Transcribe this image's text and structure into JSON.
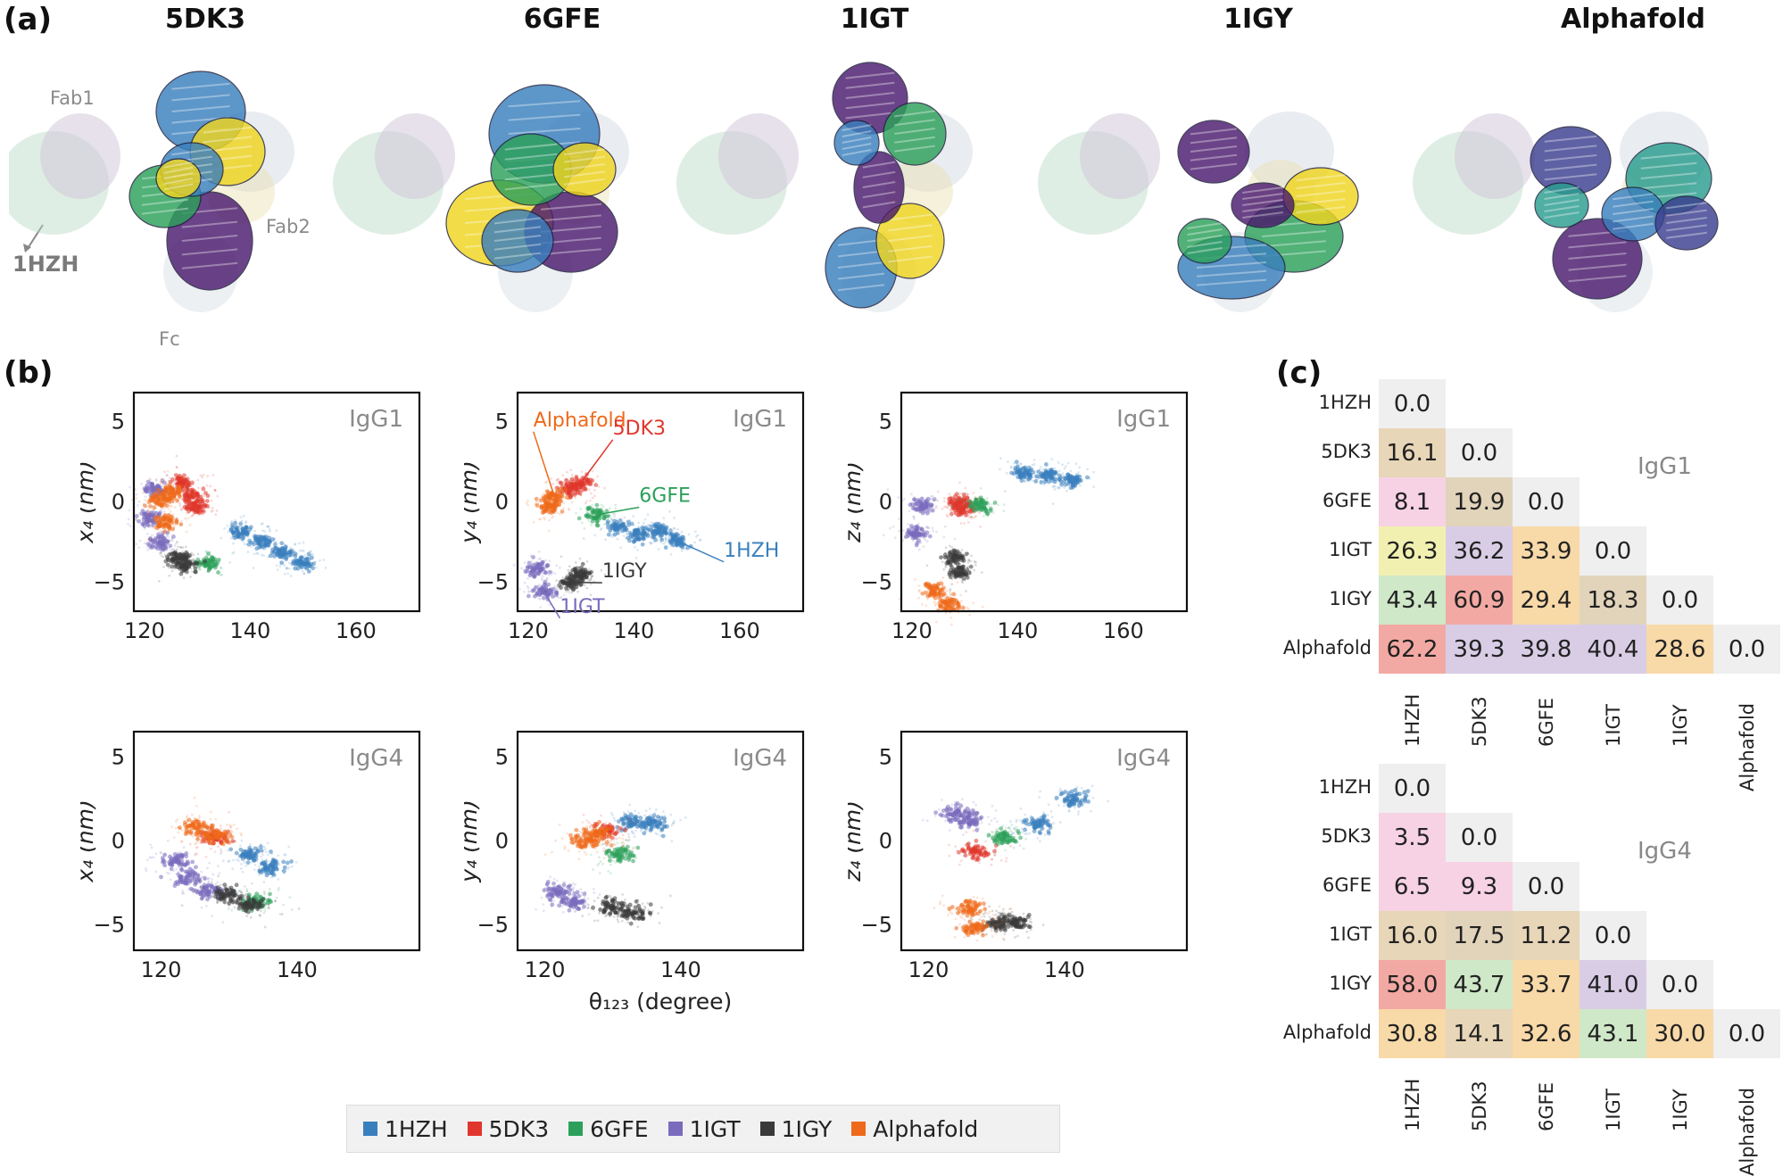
{
  "panel_labels": {
    "a": "(a)",
    "b": "(b)",
    "c": "(c)"
  },
  "panel_a": {
    "titles": [
      "5DK3",
      "6GFE",
      "1IGT",
      "1IGY",
      "Alphafold"
    ],
    "annotations": {
      "fab1": "Fab1",
      "fab2": "Fab2",
      "fc": "Fc",
      "reference": "1HZH"
    }
  },
  "colors": {
    "1HZH": "#3a7fbd",
    "5DK3": "#e0362c",
    "6GFE": "#2ca05a",
    "1IGT": "#7a6bbd",
    "1IGY": "#3a3a3a",
    "Alphafold": "#ee6a1a"
  },
  "legend": [
    "1HZH",
    "5DK3",
    "6GFE",
    "1IGT",
    "1IGY",
    "Alphafold"
  ],
  "chart_data": [
    {
      "type": "scatter",
      "subtype": "density",
      "title": "IgG1",
      "ylabel": "x₄ (nm)",
      "xlim": [
        118,
        172
      ],
      "ylim": [
        -6.8,
        6.8
      ],
      "xticks": [
        120,
        140,
        160
      ],
      "yticks": [
        -5,
        0,
        5
      ],
      "series": [
        {
          "name": "1HZH",
          "points": [
            [
              138,
              -1.8
            ],
            [
              142,
              -2.5
            ],
            [
              146,
              -3.2
            ],
            [
              150,
              -3.8
            ]
          ]
        },
        {
          "name": "5DK3",
          "points": [
            [
              127,
              1.2
            ],
            [
              129,
              0.3
            ],
            [
              130,
              -0.3
            ]
          ]
        },
        {
          "name": "6GFE",
          "points": [
            [
              132,
              -3.8
            ]
          ]
        },
        {
          "name": "1IGT",
          "points": [
            [
              122,
              0.8
            ],
            [
              121,
              -1.0
            ],
            [
              123,
              -2.5
            ]
          ]
        },
        {
          "name": "1IGY",
          "points": [
            [
              126,
              -3.5
            ],
            [
              128,
              -3.9
            ]
          ]
        },
        {
          "name": "Alphafold",
          "points": [
            [
              123,
              0.1
            ],
            [
              124,
              -1.3
            ],
            [
              125,
              0.6
            ]
          ]
        }
      ]
    },
    {
      "type": "scatter",
      "subtype": "density",
      "title": "IgG1",
      "ylabel": "y₄ (nm)",
      "xlim": [
        118,
        172
      ],
      "ylim": [
        -6.8,
        6.8
      ],
      "xticks": [
        120,
        140,
        160
      ],
      "yticks": [
        -5,
        0,
        5
      ],
      "annotations": [
        {
          "text": "Alphafold",
          "series": "Alphafold"
        },
        {
          "text": "5DK3",
          "series": "5DK3"
        },
        {
          "text": "6GFE",
          "series": "6GFE"
        },
        {
          "text": "1HZH",
          "series": "1HZH"
        },
        {
          "text": "1IGY",
          "series": "1IGY"
        },
        {
          "text": "1IGT",
          "series": "1IGT"
        }
      ],
      "series": [
        {
          "name": "1HZH",
          "points": [
            [
              137,
              -1.5
            ],
            [
              141,
              -2.0
            ],
            [
              145,
              -1.8
            ],
            [
              148,
              -2.4
            ]
          ]
        },
        {
          "name": "5DK3",
          "points": [
            [
              128,
              0.8
            ],
            [
              130,
              1.2
            ]
          ]
        },
        {
          "name": "6GFE",
          "points": [
            [
              133,
              -0.8
            ]
          ]
        },
        {
          "name": "1IGT",
          "points": [
            [
              122,
              -4.2
            ],
            [
              123,
              -5.6
            ]
          ]
        },
        {
          "name": "1IGY",
          "points": [
            [
              130,
              -4.5
            ],
            [
              128,
              -5.0
            ]
          ]
        },
        {
          "name": "Alphafold",
          "points": [
            [
              124,
              -0.3
            ],
            [
              125,
              0.3
            ]
          ]
        }
      ]
    },
    {
      "type": "scatter",
      "subtype": "density",
      "title": "IgG1",
      "ylabel": "z₄ (nm)",
      "xlim": [
        118,
        172
      ],
      "ylim": [
        -6.8,
        6.8
      ],
      "xticks": [
        120,
        140,
        160
      ],
      "yticks": [
        -5,
        0,
        5
      ],
      "series": [
        {
          "name": "1HZH",
          "points": [
            [
              141,
              1.8
            ],
            [
              146,
              1.6
            ],
            [
              150,
              1.4
            ]
          ]
        },
        {
          "name": "5DK3",
          "points": [
            [
              129,
              0.0
            ],
            [
              130,
              -0.4
            ]
          ]
        },
        {
          "name": "6GFE",
          "points": [
            [
              133,
              -0.2
            ]
          ]
        },
        {
          "name": "1IGT",
          "points": [
            [
              122,
              -0.2
            ],
            [
              121,
              -2.0
            ]
          ]
        },
        {
          "name": "1IGY",
          "points": [
            [
              128,
              -3.5
            ],
            [
              129,
              -4.4
            ]
          ]
        },
        {
          "name": "Alphafold",
          "points": [
            [
              124,
              -5.5
            ],
            [
              127,
              -6.4
            ]
          ]
        }
      ]
    },
    {
      "type": "scatter",
      "subtype": "density",
      "title": "IgG4",
      "ylabel": "x₄ (nm)",
      "xlim": [
        116,
        158
      ],
      "ylim": [
        -6.5,
        6.5
      ],
      "xticks": [
        120,
        140
      ],
      "yticks": [
        -5,
        0,
        5
      ],
      "series": [
        {
          "name": "1HZH",
          "points": [
            [
              133,
              -0.8
            ],
            [
              136,
              -1.6
            ]
          ]
        },
        {
          "name": "5DK3",
          "points": [
            [
              128,
              0.2
            ]
          ]
        },
        {
          "name": "6GFE",
          "points": [
            [
              134,
              -3.6
            ]
          ]
        },
        {
          "name": "1IGT",
          "points": [
            [
              122,
              -1.2
            ],
            [
              124,
              -2.2
            ],
            [
              127,
              -3.0
            ]
          ]
        },
        {
          "name": "1IGY",
          "points": [
            [
              130,
              -3.2
            ],
            [
              133,
              -3.8
            ]
          ]
        },
        {
          "name": "Alphafold",
          "points": [
            [
              125,
              0.8
            ],
            [
              128,
              0.3
            ]
          ]
        }
      ]
    },
    {
      "type": "scatter",
      "subtype": "density",
      "title": "IgG4",
      "ylabel": "y₄ (nm)",
      "xlabel": "θ₁₂₃ (degree)",
      "xlim": [
        116,
        158
      ],
      "ylim": [
        -6.5,
        6.5
      ],
      "xticks": [
        120,
        140
      ],
      "yticks": [
        -5,
        0,
        5
      ],
      "series": [
        {
          "name": "1HZH",
          "points": [
            [
              133,
              1.1
            ],
            [
              136,
              1.0
            ]
          ]
        },
        {
          "name": "5DK3",
          "points": [
            [
              129,
              0.6
            ]
          ]
        },
        {
          "name": "6GFE",
          "points": [
            [
              131,
              -0.8
            ]
          ]
        },
        {
          "name": "1IGT",
          "points": [
            [
              122,
              -3.0
            ],
            [
              124,
              -3.6
            ]
          ]
        },
        {
          "name": "1IGY",
          "points": [
            [
              130,
              -3.9
            ],
            [
              133,
              -4.3
            ]
          ]
        },
        {
          "name": "Alphafold",
          "points": [
            [
              126,
              0.0
            ],
            [
              128,
              0.4
            ]
          ]
        }
      ]
    },
    {
      "type": "scatter",
      "subtype": "density",
      "title": "IgG4",
      "ylabel": "z₄ (nm)",
      "xlim": [
        116,
        158
      ],
      "ylim": [
        -6.5,
        6.5
      ],
      "xticks": [
        120,
        140
      ],
      "yticks": [
        -5,
        0,
        5
      ],
      "series": [
        {
          "name": "1HZH",
          "points": [
            [
              136,
              1.0
            ],
            [
              141,
              2.5
            ]
          ]
        },
        {
          "name": "5DK3",
          "points": [
            [
              127,
              -0.6
            ]
          ]
        },
        {
          "name": "6GFE",
          "points": [
            [
              131,
              0.2
            ]
          ]
        },
        {
          "name": "1IGT",
          "points": [
            [
              124,
              1.6
            ],
            [
              126,
              1.2
            ]
          ]
        },
        {
          "name": "1IGY",
          "points": [
            [
              130,
              -4.9
            ],
            [
              133,
              -4.8
            ]
          ]
        },
        {
          "name": "Alphafold",
          "points": [
            [
              126,
              -4.0
            ],
            [
              127,
              -5.2
            ]
          ]
        }
      ]
    },
    {
      "type": "heatmap",
      "title": "IgG1",
      "labels": [
        "1HZH",
        "5DK3",
        "6GFE",
        "1IGT",
        "1IGY",
        "Alphafold"
      ],
      "values": [
        [
          "0.0"
        ],
        [
          "16.1",
          "0.0"
        ],
        [
          "8.1",
          "19.9",
          "0.0"
        ],
        [
          "26.3",
          "36.2",
          "33.9",
          "0.0"
        ],
        [
          "43.4",
          "60.9",
          "29.4",
          "18.3",
          "0.0"
        ],
        [
          "62.2",
          "39.3",
          "39.8",
          "40.4",
          "28.6",
          "0.0"
        ]
      ]
    },
    {
      "type": "heatmap",
      "title": "IgG4",
      "labels": [
        "1HZH",
        "5DK3",
        "6GFE",
        "1IGT",
        "1IGY",
        "Alphafold"
      ],
      "values": [
        [
          "0.0"
        ],
        [
          "3.5",
          "0.0"
        ],
        [
          "6.5",
          "9.3",
          "0.0"
        ],
        [
          "16.0",
          "17.5",
          "11.2",
          "0.0"
        ],
        [
          "58.0",
          "43.7",
          "33.7",
          "41.0",
          "0.0"
        ],
        [
          "30.8",
          "14.1",
          "32.6",
          "43.1",
          "30.0",
          "0.0"
        ]
      ]
    }
  ]
}
